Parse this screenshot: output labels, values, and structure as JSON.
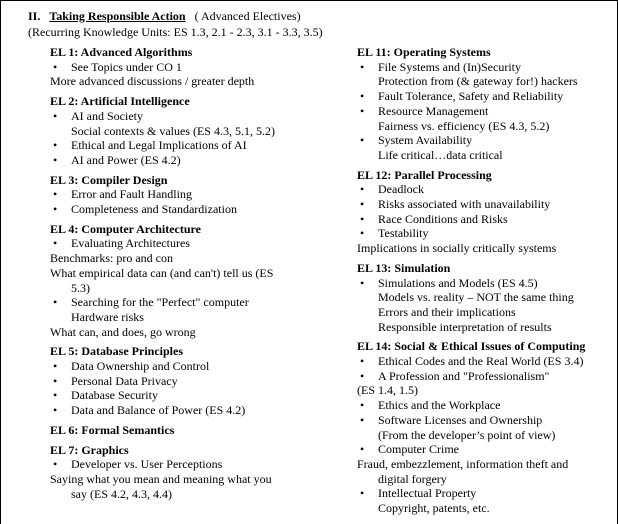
{
  "header": {
    "numeral": "II.",
    "title": "Taking Responsible Action",
    "subtitle": "( Advanced Electives)",
    "units": "(Recurring Knowledge Units: ES 1.3, 2.1 - 2.3, 3.1 - 3.3, 3.5)"
  },
  "columns": [
    {
      "sections": [
        {
          "heading": "EL 1: Advanced Algorithms",
          "items": [
            {
              "bullet": true,
              "lines": [
                "See Topics under CO 1"
              ]
            },
            {
              "bullet": false,
              "lines": [
                "More advanced discussions / greater depth"
              ]
            }
          ]
        },
        {
          "heading": "EL 2: Artificial Intelligence",
          "items": [
            {
              "bullet": true,
              "lines": [
                "AI and Society",
                "Social contexts & values  (ES 4.3, 5.1, 5.2)"
              ]
            },
            {
              "bullet": true,
              "lines": [
                "Ethical and Legal Implications of AI"
              ]
            },
            {
              "bullet": true,
              "lines": [
                "AI and Power (ES  4.2)"
              ]
            }
          ]
        },
        {
          "heading": "EL 3: Compiler Design",
          "items": [
            {
              "bullet": true,
              "lines": [
                "Error and Fault Handling"
              ]
            },
            {
              "bullet": true,
              "lines": [
                "Completeness and Standardization"
              ]
            }
          ]
        },
        {
          "heading": "EL 4: Computer Architecture",
          "items": [
            {
              "bullet": true,
              "lines": [
                "Evaluating Architectures"
              ]
            },
            {
              "bullet": false,
              "lines": [
                "Benchmarks: pro and con"
              ]
            },
            {
              "bullet": false,
              "lines": [
                "What empirical data can (and can't) tell us  (ES",
                "5.3)"
              ]
            },
            {
              "bullet": true,
              "lines": [
                "Searching for the \"Perfect\" computer",
                "Hardware risks"
              ]
            },
            {
              "bullet": false,
              "lines": [
                "What can, and does, go wrong"
              ]
            }
          ]
        },
        {
          "heading": "EL 5: Database Principles",
          "items": [
            {
              "bullet": true,
              "lines": [
                "Data Ownership and Control"
              ]
            },
            {
              "bullet": true,
              "lines": [
                "Personal Data Privacy"
              ]
            },
            {
              "bullet": true,
              "lines": [
                "Database Security"
              ]
            },
            {
              "bullet": true,
              "lines": [
                "Data and Balance of Power  (ES 4.2)"
              ]
            }
          ]
        },
        {
          "heading": "EL 6: Formal Semantics",
          "items": []
        },
        {
          "heading": "EL 7: Graphics",
          "items": [
            {
              "bullet": true,
              "lines": [
                "Developer vs. User Perceptions"
              ]
            },
            {
              "bullet": false,
              "lines": [
                "Saying what you mean and meaning what you",
                "say  (ES 4.2, 4.3, 4.4)"
              ]
            }
          ]
        }
      ]
    },
    {
      "sections": [
        {
          "heading": "EL 11: Operating Systems",
          "items": [
            {
              "bullet": true,
              "lines": [
                "File Systems and (In)Security",
                "Protection from (& gateway for!) hackers"
              ]
            },
            {
              "bullet": true,
              "lines": [
                "Fault Tolerance, Safety and Reliability"
              ]
            },
            {
              "bullet": true,
              "lines": [
                "Resource Management",
                "Fairness vs. efficiency  (ES 4.3, 5.2)"
              ]
            },
            {
              "bullet": true,
              "lines": [
                "System Availability",
                "Life critical…data critical"
              ]
            }
          ]
        },
        {
          "heading": "EL 12: Parallel Processing",
          "items": [
            {
              "bullet": true,
              "lines": [
                "Deadlock"
              ]
            },
            {
              "bullet": true,
              "lines": [
                "Risks associated with unavailability"
              ]
            },
            {
              "bullet": true,
              "lines": [
                "Race Conditions and Risks"
              ]
            },
            {
              "bullet": true,
              "lines": [
                "Testability"
              ]
            },
            {
              "bullet": false,
              "lines": [
                "Implications in socially critically systems"
              ]
            }
          ]
        },
        {
          "heading": "EL 13: Simulation",
          "items": [
            {
              "bullet": true,
              "lines": [
                "Simulations and Models  (ES 4.5)",
                "Models vs. reality – NOT the same thing",
                "Errors and their implications",
                "Responsible interpretation of results"
              ]
            }
          ]
        },
        {
          "heading": "EL 14: Social & Ethical Issues of Computing",
          "items": [
            {
              "bullet": true,
              "lines": [
                "Ethical Codes and the Real World  (ES 3.4)"
              ]
            },
            {
              "bullet": true,
              "lines": [
                "A Profession and \"Professionalism\""
              ]
            },
            {
              "bullet": false,
              "lines": [
                "(ES 1.4, 1.5)"
              ]
            },
            {
              "bullet": true,
              "lines": [
                "Ethics and  the Workplace"
              ]
            },
            {
              "bullet": true,
              "lines": [
                "Software Licenses and Ownership",
                "(From the developer’s  point of view)"
              ]
            },
            {
              "bullet": true,
              "lines": [
                "Computer Crime"
              ]
            },
            {
              "bullet": false,
              "lines": [
                "Fraud, embezzlement, information theft and",
                "digital forgery"
              ]
            },
            {
              "bullet": true,
              "lines": [
                "Intellectual Property",
                "Copyright,  patents, etc."
              ]
            }
          ]
        }
      ]
    }
  ]
}
